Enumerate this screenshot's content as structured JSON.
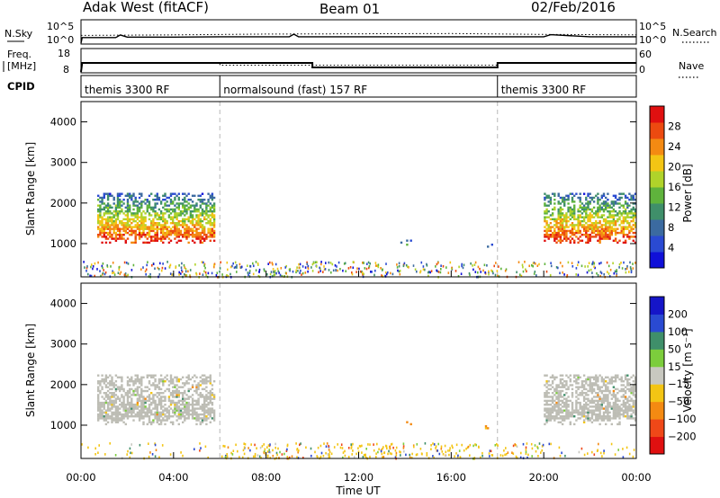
{
  "header": {
    "station": "Adak West (fitACF)",
    "beam": "Beam 01",
    "date": "02/Feb/2016"
  },
  "noise_panel": {
    "left_label": "N.Sky",
    "right_label": "N.Search",
    "y_top_label": "10^5",
    "y_bottom_label": "10^0"
  },
  "freq_panel": {
    "left_label_line1": "Freq.",
    "left_label_line2": "[MHz]",
    "right_label": "Nave",
    "left_ticks": [
      "18",
      "8"
    ],
    "right_ticks": [
      "60",
      "0"
    ]
  },
  "cpid_panel": {
    "label": "CPID",
    "segments": [
      {
        "label": "themis 3300 RF",
        "start_hr": 0,
        "end_hr": 6
      },
      {
        "label": "normalsound (fast) 157 RF",
        "start_hr": 6,
        "end_hr": 18
      },
      {
        "label": "themis 3300 RF",
        "start_hr": 18,
        "end_hr": 24
      }
    ]
  },
  "power_panel": {
    "ylabel": "Slant Range [km]",
    "colorbar_label": "Power [dB]",
    "colorbar_ticks": [
      "28",
      "24",
      "20",
      "16",
      "12",
      "8",
      "4"
    ]
  },
  "velocity_panel": {
    "ylabel": "Slant Range [km]",
    "colorbar_label": "Velocity [m s⁻¹]",
    "colorbar_ticks": [
      "200",
      "100",
      "50",
      "15",
      "−15",
      "−50",
      "−100",
      "−200"
    ]
  },
  "x_axis": {
    "label": "Time UT",
    "ticks": [
      "00:00",
      "04:00",
      "08:00",
      "12:00",
      "16:00",
      "20:00",
      "00:00"
    ]
  },
  "chart_data": [
    {
      "type": "line",
      "panel": "noise",
      "xlabel": "",
      "ylabel": "",
      "x_range_hours": [
        0,
        24
      ],
      "yscale": "log",
      "series": [
        {
          "name": "N.Sky",
          "x": [
            0,
            0.05,
            1.5,
            1.7,
            2,
            4,
            6,
            9,
            9.2,
            9.4,
            12,
            15,
            18,
            20,
            20.3,
            22,
            24
          ],
          "y": [
            1,
            20,
            20,
            80,
            25,
            25,
            30,
            30,
            120,
            30,
            30,
            30,
            30,
            30,
            90,
            30,
            30
          ]
        },
        {
          "name": "N.Search",
          "x": [
            0,
            4,
            8,
            12,
            16,
            20,
            24
          ],
          "y": [
            15,
            20,
            30,
            35,
            40,
            25,
            20
          ]
        }
      ]
    },
    {
      "type": "line",
      "panel": "frequency",
      "x_range_hours": [
        0,
        24
      ],
      "series": [
        {
          "name": "Freq.",
          "x": [
            0,
            0.05,
            10,
            10,
            18,
            18,
            24
          ],
          "y": [
            8,
            12,
            12,
            10,
            10,
            12,
            12
          ]
        },
        {
          "name": "Nave",
          "x": [
            0,
            0.05,
            6,
            6,
            18,
            18,
            24
          ],
          "y": [
            0,
            24,
            24,
            18,
            18,
            24,
            24
          ]
        }
      ],
      "ylim_freq": [
        8,
        18
      ],
      "ylim_nave": [
        0,
        60
      ]
    },
    {
      "type": "heatmap",
      "panel": "power",
      "x_range_hours": [
        0,
        24
      ],
      "y_range_km": [
        180,
        4500
      ],
      "y_ticks": [
        1000,
        2000,
        3000,
        4000
      ],
      "colorbar_range_db": [
        0,
        30
      ],
      "features": [
        {
          "hr": [
            0.7,
            5.8
          ],
          "km": [
            1050,
            2300
          ],
          "level_db": 22
        },
        {
          "hr": [
            13.8,
            14.3
          ],
          "km": [
            1000,
            1150
          ],
          "level_db": 10
        },
        {
          "hr": [
            17.1,
            17.9
          ],
          "km": [
            950,
            1100
          ],
          "level_db": 6
        },
        {
          "hr": [
            20.0,
            24.0
          ],
          "km": [
            1050,
            2300
          ],
          "level_db": 22
        }
      ]
    },
    {
      "type": "heatmap",
      "panel": "velocity",
      "x_range_hours": [
        0,
        24
      ],
      "y_range_km": [
        180,
        4500
      ],
      "y_ticks": [
        1000,
        2000,
        3000,
        4000
      ],
      "colorbar_range_ms": [
        -200,
        200
      ],
      "features": [
        {
          "hr": [
            0.7,
            5.8
          ],
          "km": [
            1050,
            2300
          ],
          "velocity_ms": 0
        },
        {
          "hr": [
            13.8,
            14.3
          ],
          "km": [
            1000,
            1150
          ],
          "velocity_ms": -100
        },
        {
          "hr": [
            17.1,
            17.9
          ],
          "km": [
            950,
            1100
          ],
          "velocity_ms": -50
        },
        {
          "hr": [
            20.0,
            24.0
          ],
          "km": [
            1050,
            2300
          ],
          "velocity_ms": 0
        }
      ]
    }
  ],
  "colors": {
    "power_scale": [
      "#1010d8",
      "#2a4ad2",
      "#3b6aa0",
      "#3f8f6a",
      "#5fb33c",
      "#b0d32a",
      "#f3c514",
      "#f48a12",
      "#ec4a10",
      "#e01010"
    ],
    "velocity_scale": [
      "#e01010",
      "#ef4818",
      "#f48a12",
      "#f3c514",
      "#c8c8c0",
      "#7ccd3c",
      "#3f8f6a",
      "#2a4ad2",
      "#1515c8"
    ],
    "ground_scatter": "#bdbdb5",
    "gridline": "#b8b8b8"
  }
}
